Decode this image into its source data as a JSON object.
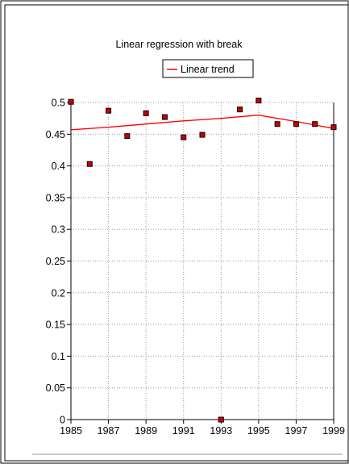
{
  "chart_data": {
    "type": "scatter",
    "title": "Linear regression with break",
    "xlabel": "",
    "ylabel": "",
    "xlim": [
      1985,
      1999
    ],
    "ylim": [
      0,
      0.5
    ],
    "grid": true,
    "legend_position": "top-center",
    "x_ticks": [
      "1985",
      "1987",
      "1989",
      "1991",
      "1993",
      "1995",
      "1997",
      "1999"
    ],
    "x_tick_values": [
      1985,
      1987,
      1989,
      1991,
      1993,
      1995,
      1997,
      1999
    ],
    "y_ticks": [
      "0",
      "0.05",
      "0.1",
      "0.15",
      "0.2",
      "0.25",
      "0.3",
      "0.35",
      "0.4",
      "0.45",
      "0.5"
    ],
    "y_tick_values": [
      0,
      0.05,
      0.1,
      0.15,
      0.2,
      0.25,
      0.3,
      0.35,
      0.4,
      0.45,
      0.5
    ],
    "points": {
      "x": [
        1985,
        1986,
        1987,
        1988,
        1989,
        1990,
        1991,
        1992,
        1993,
        1994,
        1995,
        1996,
        1997,
        1998,
        1999
      ],
      "y": [
        0.501,
        0.403,
        0.487,
        0.447,
        0.483,
        0.477,
        0.445,
        0.449,
        0.0,
        0.489,
        0.503,
        0.466,
        0.466,
        0.466,
        0.461
      ],
      "color": "#cc0000",
      "border": "#000000"
    },
    "series": [
      {
        "name": "Linear trend",
        "color": "#ff0000",
        "x": [
          1985,
          1987,
          1989,
          1991,
          1993,
          1995,
          1997,
          1999
        ],
        "y": [
          0.457,
          0.461,
          0.466,
          0.471,
          0.475,
          0.48,
          0.47,
          0.459
        ]
      }
    ]
  },
  "colors": {
    "frame": "#000000",
    "grid": "#9a9a9a",
    "background": "#ffffff"
  }
}
